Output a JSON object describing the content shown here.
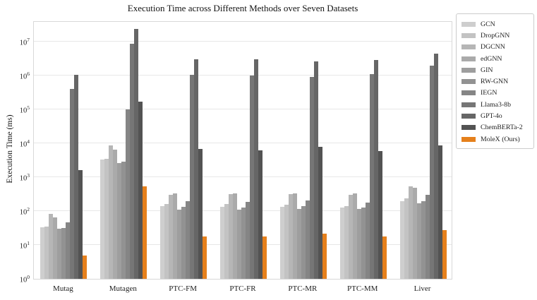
{
  "title": "Execution Time across Different Methods over Seven Datasets",
  "ylabel": "Execution Time (ms)",
  "chart_data": {
    "type": "bar",
    "y_scale": "log",
    "grid": "horizontal",
    "legend_position": "outside-upper-right",
    "ylim": [
      1,
      43000000
    ],
    "ytick_exponents": [
      0,
      1,
      2,
      3,
      4,
      5,
      6,
      7
    ],
    "ytick_base": "10",
    "categories": [
      "Mutag",
      "Mutagen",
      "PTC-FM",
      "PTC-FR",
      "PTC-MR",
      "PTC-MM",
      "Liver"
    ],
    "series": [
      {
        "name": "GCN",
        "color": "#cecece",
        "values": [
          33,
          3400,
          138,
          137,
          137,
          127,
          197
        ]
      },
      {
        "name": "DropGNN",
        "color": "#c3c3c3",
        "values": [
          35,
          3500,
          165,
          160,
          152,
          141,
          240
        ]
      },
      {
        "name": "DGCNN",
        "color": "#b6b6b6",
        "values": [
          85,
          8700,
          310,
          316,
          316,
          306,
          550
        ]
      },
      {
        "name": "edGNN",
        "color": "#aaaaaa",
        "values": [
          65,
          6500,
          335,
          340,
          330,
          330,
          490
        ]
      },
      {
        "name": "GIN",
        "color": "#9e9e9e",
        "values": [
          31,
          2700,
          113,
          113,
          117,
          117,
          174
        ]
      },
      {
        "name": "RW-GNN",
        "color": "#929292",
        "values": [
          32,
          2950,
          133,
          126,
          138,
          127,
          195
        ]
      },
      {
        "name": "IEGN",
        "color": "#858585",
        "values": [
          47,
          100000,
          200,
          190,
          212,
          181,
          305
        ]
      },
      {
        "name": "Llama3-8b",
        "color": "#767676",
        "values": [
          400000,
          8800000,
          1050000,
          1000000,
          920000,
          1100000,
          2000000
        ]
      },
      {
        "name": "GPT-4o",
        "color": "#666666",
        "values": [
          1050000,
          24000000,
          3000000,
          3000000,
          2600000,
          2900000,
          4500000
        ]
      },
      {
        "name": "ChemBERTa-2",
        "color": "#535353",
        "values": [
          1600,
          170000,
          6900,
          6200,
          7800,
          5900,
          8800
        ]
      },
      {
        "name": "MoleX (Ours)",
        "color": "#e5801c",
        "values": [
          5,
          550,
          18,
          18,
          22,
          18,
          27
        ]
      }
    ]
  }
}
